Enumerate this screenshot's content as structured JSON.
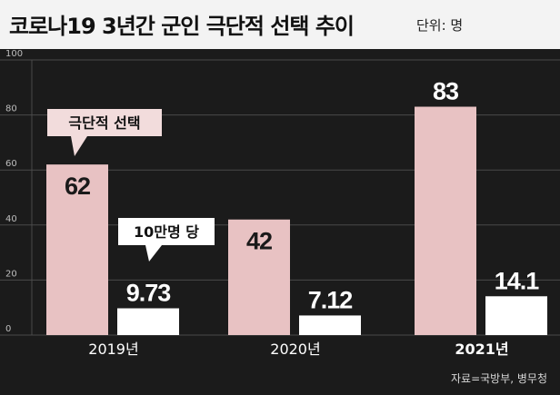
{
  "header": {
    "title": "코로나19 3년간 군인 극단적 선택 추이",
    "unit": "단위: 명"
  },
  "footer": {
    "source": "자료=국방부, 병무청"
  },
  "colors": {
    "background": "#1b1b1b",
    "title_bar": "#f3f3f3",
    "primary_bar": "#e8c2c3",
    "secondary_bar": "#ffffff",
    "grid": "#4a4a4a"
  },
  "chart_data": {
    "type": "bar",
    "categories": [
      "2019년",
      "2020년",
      "2021년"
    ],
    "series": [
      {
        "name": "극단적 선택",
        "values": [
          62,
          42,
          83
        ]
      },
      {
        "name": "10만명 당",
        "values": [
          9.73,
          7.12,
          14.1
        ]
      }
    ],
    "yticks": [
      0,
      20,
      40,
      60,
      80,
      100
    ],
    "ylim": [
      0,
      100
    ],
    "grid": true,
    "highlight_category": "2021년",
    "annotations": [
      "극단적 선택",
      "10만명 당"
    ]
  }
}
